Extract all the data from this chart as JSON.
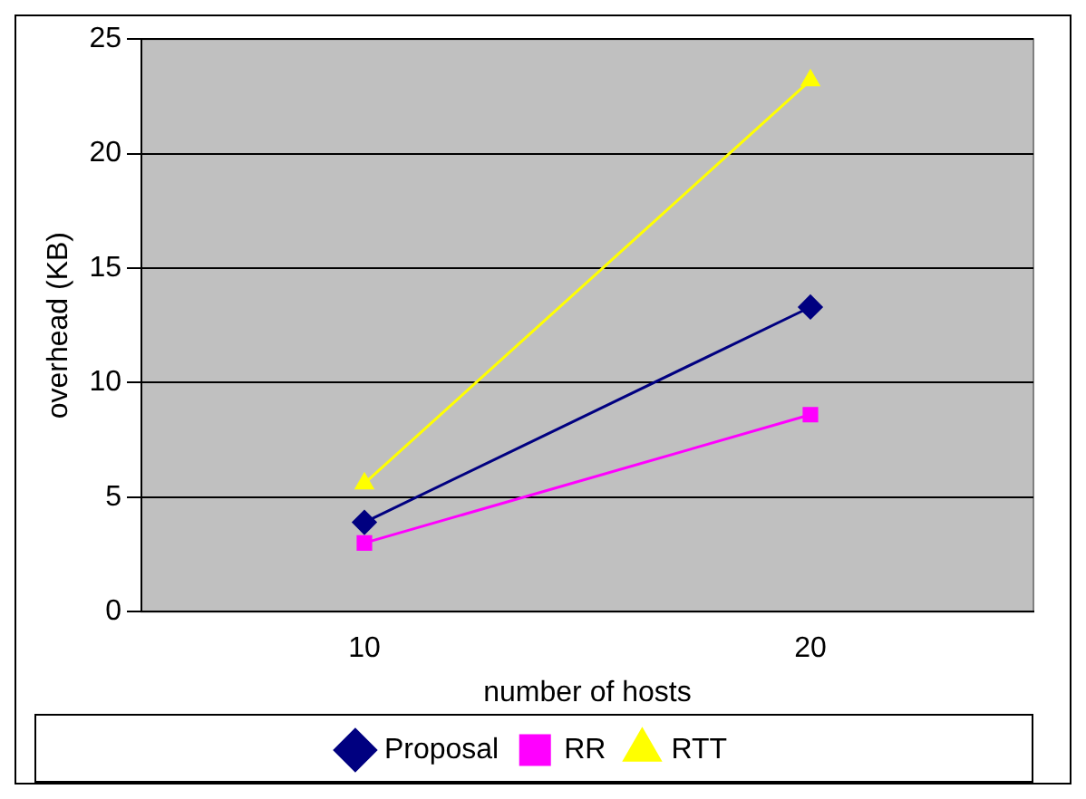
{
  "chart_data": {
    "type": "line",
    "xlabel": "number of hosts",
    "ylabel": "overhead (KB)",
    "categories": [
      "10",
      "20"
    ],
    "series": [
      {
        "name": "Proposal",
        "color": "#000080",
        "marker": "diamond",
        "values": [
          3.9,
          13.3
        ]
      },
      {
        "name": "RR",
        "color": "#ff00ff",
        "marker": "square",
        "values": [
          3.0,
          8.6
        ]
      },
      {
        "name": "RTT",
        "color": "#ffff00",
        "marker": "triangle",
        "values": [
          5.6,
          23.2
        ]
      }
    ],
    "ylim": [
      0,
      25
    ],
    "yticks": [
      0,
      5,
      10,
      15,
      20,
      25
    ],
    "grid": "y",
    "legend": "bottom"
  }
}
